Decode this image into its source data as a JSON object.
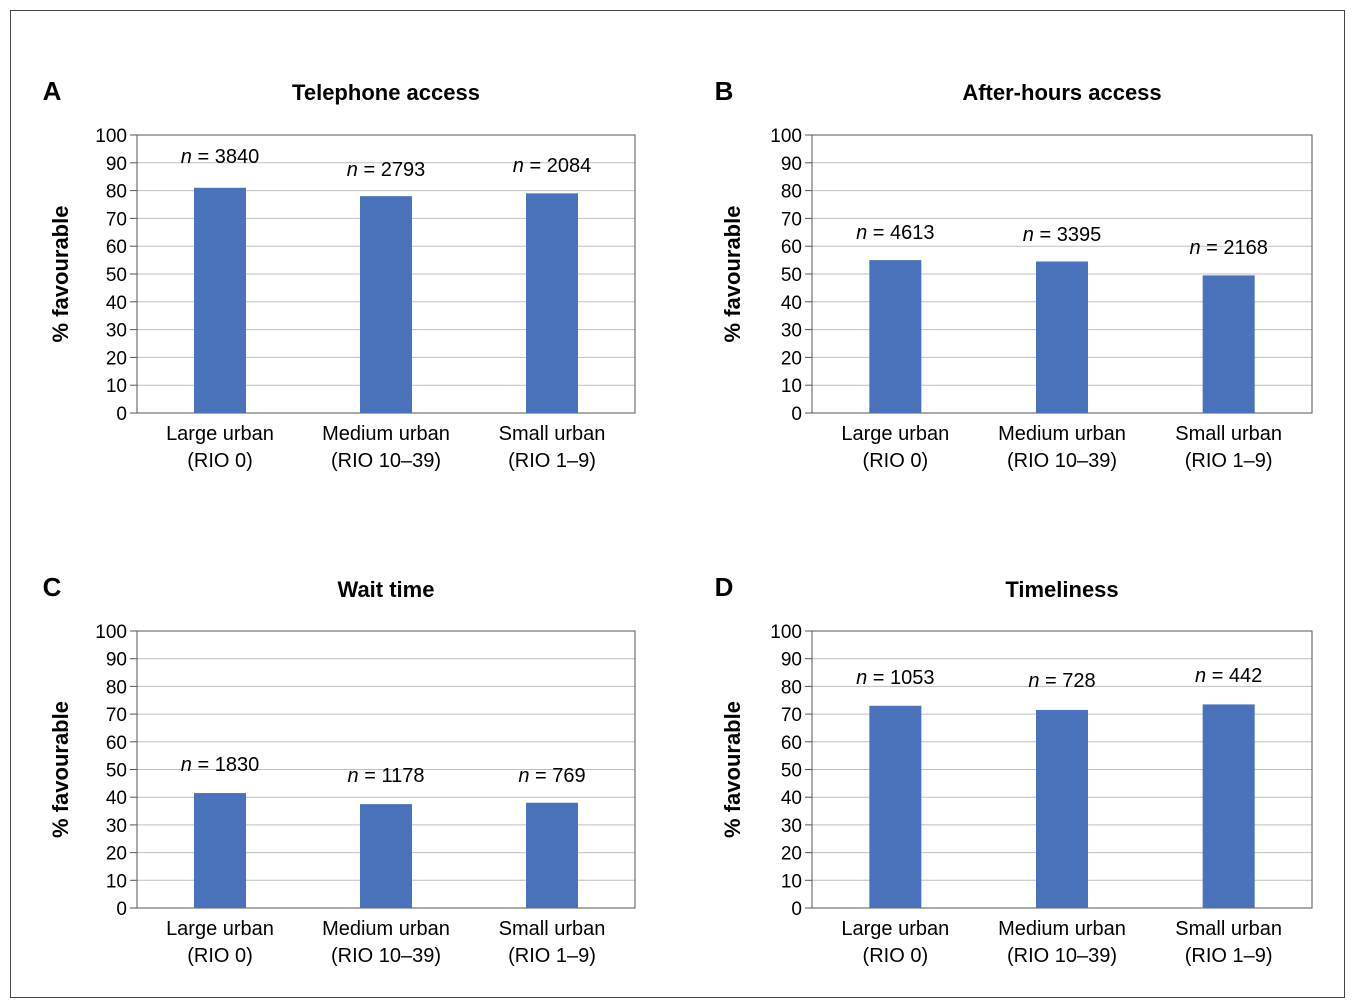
{
  "figure": {
    "ylabel": "% favourable",
    "bar_color": "#4A72BA",
    "grid_color": "#BFBFBF",
    "n_prefix": "n",
    "n_equals": " = "
  },
  "chart_data": [
    {
      "type": "bar",
      "panel": "A",
      "title": "Telephone access",
      "categories": [
        [
          "Large urban",
          "(RIO 0)"
        ],
        [
          "Medium urban",
          "(RIO 10–39)"
        ],
        [
          "Small urban",
          "(RIO 1–9)"
        ]
      ],
      "values": [
        81,
        78,
        79
      ],
      "n_labels": [
        "3840",
        "2793",
        "2084"
      ],
      "ylabel": "% favourable",
      "ylim": [
        0,
        100
      ],
      "yticks": [
        0,
        10,
        20,
        30,
        40,
        50,
        60,
        70,
        80,
        90,
        100
      ],
      "grid": true
    },
    {
      "type": "bar",
      "panel": "B",
      "title": "After-hours access",
      "categories": [
        [
          "Large urban",
          "(RIO 0)"
        ],
        [
          "Medium urban",
          "(RIO 10–39)"
        ],
        [
          "Small urban",
          "(RIO 1–9)"
        ]
      ],
      "values": [
        55,
        54.5,
        49.5
      ],
      "n_labels": [
        "4613",
        "3395",
        "2168"
      ],
      "ylabel": "% favourable",
      "ylim": [
        0,
        100
      ],
      "yticks": [
        0,
        10,
        20,
        30,
        40,
        50,
        60,
        70,
        80,
        90,
        100
      ],
      "grid": true
    },
    {
      "type": "bar",
      "panel": "C",
      "title": "Wait time",
      "categories": [
        [
          "Large urban",
          "(RIO 0)"
        ],
        [
          "Medium urban",
          "(RIO 10–39)"
        ],
        [
          "Small urban",
          "(RIO 1–9)"
        ]
      ],
      "values": [
        41.5,
        37.5,
        38
      ],
      "n_labels": [
        "1830",
        "1178",
        "769"
      ],
      "ylabel": "% favourable",
      "ylim": [
        0,
        100
      ],
      "yticks": [
        0,
        10,
        20,
        30,
        40,
        50,
        60,
        70,
        80,
        90,
        100
      ],
      "grid": true
    },
    {
      "type": "bar",
      "panel": "D",
      "title": "Timeliness",
      "categories": [
        [
          "Large urban",
          "(RIO 0)"
        ],
        [
          "Medium urban",
          "(RIO 10–39)"
        ],
        [
          "Small urban",
          "(RIO 1–9)"
        ]
      ],
      "values": [
        73,
        71.5,
        73.5
      ],
      "n_labels": [
        "1053",
        "728",
        "442"
      ],
      "ylabel": "% favourable",
      "ylim": [
        0,
        100
      ],
      "yticks": [
        0,
        10,
        20,
        30,
        40,
        50,
        60,
        70,
        80,
        90,
        100
      ],
      "grid": true
    }
  ]
}
